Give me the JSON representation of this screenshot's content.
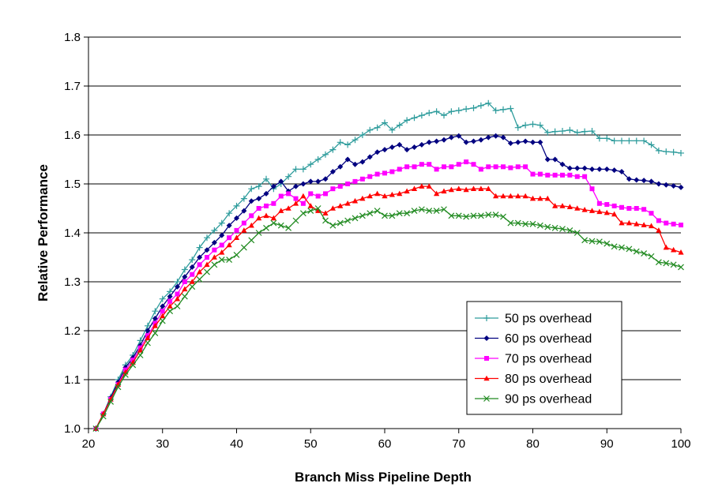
{
  "chart_data": {
    "type": "line",
    "title": "",
    "xlabel": "Branch Miss Pipeline Depth",
    "ylabel": "Relative Performance",
    "xlim": [
      20,
      100
    ],
    "ylim": [
      1.0,
      1.8
    ],
    "x_ticks": [
      "20",
      "30",
      "40",
      "50",
      "60",
      "70",
      "80",
      "90",
      "100"
    ],
    "y_ticks": [
      "1.0",
      "1.1",
      "1.2",
      "1.3",
      "1.4",
      "1.5",
      "1.6",
      "1.7",
      "1.8"
    ],
    "grid": "horizontal",
    "legend_position": "bottom-right",
    "x": [
      21,
      22,
      23,
      24,
      25,
      26,
      27,
      28,
      29,
      30,
      31,
      32,
      33,
      34,
      35,
      36,
      37,
      38,
      39,
      40,
      41,
      42,
      43,
      44,
      45,
      46,
      47,
      48,
      49,
      50,
      51,
      52,
      53,
      54,
      55,
      56,
      57,
      58,
      59,
      60,
      61,
      62,
      63,
      64,
      65,
      66,
      67,
      68,
      69,
      70,
      71,
      72,
      73,
      74,
      75,
      76,
      77,
      78,
      79,
      80,
      81,
      82,
      83,
      84,
      85,
      86,
      87,
      88,
      89,
      90,
      91,
      92,
      93,
      94,
      95,
      96,
      97,
      98,
      99,
      100
    ],
    "series": [
      {
        "name": "50 ps overhead",
        "color": "#2E9C9C",
        "marker": "plus",
        "values": [
          1.0,
          1.03,
          1.065,
          1.1,
          1.13,
          1.15,
          1.18,
          1.21,
          1.24,
          1.265,
          1.28,
          1.3,
          1.325,
          1.345,
          1.37,
          1.39,
          1.405,
          1.42,
          1.44,
          1.455,
          1.47,
          1.49,
          1.495,
          1.51,
          1.49,
          1.5,
          1.515,
          1.53,
          1.53,
          1.54,
          1.55,
          1.56,
          1.57,
          1.585,
          1.58,
          1.59,
          1.6,
          1.61,
          1.615,
          1.625,
          1.61,
          1.62,
          1.63,
          1.635,
          1.64,
          1.645,
          1.648,
          1.64,
          1.648,
          1.65,
          1.653,
          1.655,
          1.66,
          1.665,
          1.65,
          1.652,
          1.654,
          1.615,
          1.62,
          1.622,
          1.62,
          1.605,
          1.607,
          1.608,
          1.61,
          1.605,
          1.607,
          1.608,
          1.593,
          1.593,
          1.588,
          1.588,
          1.588,
          1.588,
          1.588,
          1.58,
          1.568,
          1.566,
          1.565,
          1.563
        ]
      },
      {
        "name": "60 ps overhead",
        "color": "#000080",
        "marker": "diamond",
        "values": [
          1.0,
          1.03,
          1.063,
          1.095,
          1.125,
          1.145,
          1.17,
          1.2,
          1.225,
          1.25,
          1.27,
          1.29,
          1.31,
          1.33,
          1.35,
          1.365,
          1.38,
          1.395,
          1.415,
          1.43,
          1.445,
          1.465,
          1.47,
          1.48,
          1.495,
          1.505,
          1.485,
          1.495,
          1.5,
          1.505,
          1.505,
          1.51,
          1.525,
          1.535,
          1.55,
          1.54,
          1.545,
          1.555,
          1.565,
          1.57,
          1.575,
          1.58,
          1.57,
          1.575,
          1.58,
          1.585,
          1.587,
          1.59,
          1.595,
          1.598,
          1.585,
          1.587,
          1.59,
          1.595,
          1.598,
          1.595,
          1.583,
          1.585,
          1.587,
          1.585,
          1.585,
          1.55,
          1.55,
          1.54,
          1.532,
          1.532,
          1.532,
          1.53,
          1.53,
          1.53,
          1.528,
          1.525,
          1.51,
          1.508,
          1.507,
          1.505,
          1.5,
          1.498,
          1.496,
          1.493
        ]
      },
      {
        "name": "70 ps overhead",
        "color": "#FF00FF",
        "marker": "square",
        "values": [
          1.0,
          1.03,
          1.06,
          1.09,
          1.12,
          1.14,
          1.165,
          1.19,
          1.215,
          1.24,
          1.26,
          1.275,
          1.3,
          1.315,
          1.335,
          1.35,
          1.365,
          1.375,
          1.39,
          1.405,
          1.42,
          1.435,
          1.45,
          1.455,
          1.46,
          1.475,
          1.48,
          1.47,
          1.46,
          1.48,
          1.475,
          1.48,
          1.49,
          1.495,
          1.5,
          1.505,
          1.51,
          1.515,
          1.52,
          1.522,
          1.525,
          1.53,
          1.535,
          1.535,
          1.54,
          1.54,
          1.53,
          1.535,
          1.535,
          1.54,
          1.545,
          1.54,
          1.53,
          1.535,
          1.535,
          1.535,
          1.533,
          1.535,
          1.535,
          1.52,
          1.52,
          1.518,
          1.518,
          1.518,
          1.518,
          1.515,
          1.515,
          1.49,
          1.46,
          1.458,
          1.455,
          1.452,
          1.45,
          1.45,
          1.448,
          1.44,
          1.425,
          1.42,
          1.418,
          1.416
        ]
      },
      {
        "name": "80 ps overhead",
        "color": "#FF0000",
        "marker": "triangle",
        "values": [
          1.0,
          1.03,
          1.06,
          1.09,
          1.115,
          1.135,
          1.16,
          1.185,
          1.21,
          1.23,
          1.25,
          1.265,
          1.285,
          1.3,
          1.32,
          1.335,
          1.35,
          1.36,
          1.375,
          1.39,
          1.405,
          1.415,
          1.43,
          1.435,
          1.43,
          1.445,
          1.45,
          1.46,
          1.475,
          1.455,
          1.445,
          1.44,
          1.45,
          1.455,
          1.46,
          1.465,
          1.47,
          1.475,
          1.48,
          1.475,
          1.478,
          1.48,
          1.485,
          1.49,
          1.495,
          1.495,
          1.48,
          1.485,
          1.488,
          1.49,
          1.488,
          1.49,
          1.49,
          1.49,
          1.475,
          1.475,
          1.475,
          1.475,
          1.475,
          1.47,
          1.47,
          1.47,
          1.455,
          1.455,
          1.453,
          1.45,
          1.447,
          1.445,
          1.443,
          1.441,
          1.438,
          1.42,
          1.42,
          1.418,
          1.416,
          1.414,
          1.405,
          1.37,
          1.365,
          1.36
        ]
      },
      {
        "name": "90 ps overhead",
        "color": "#228B22",
        "marker": "x",
        "values": [
          1.0,
          1.025,
          1.055,
          1.085,
          1.11,
          1.13,
          1.15,
          1.175,
          1.195,
          1.22,
          1.24,
          1.25,
          1.27,
          1.29,
          1.305,
          1.32,
          1.335,
          1.345,
          1.345,
          1.355,
          1.37,
          1.385,
          1.4,
          1.41,
          1.42,
          1.415,
          1.41,
          1.425,
          1.44,
          1.445,
          1.45,
          1.425,
          1.415,
          1.42,
          1.425,
          1.43,
          1.435,
          1.44,
          1.445,
          1.435,
          1.435,
          1.44,
          1.44,
          1.445,
          1.448,
          1.445,
          1.445,
          1.448,
          1.435,
          1.435,
          1.433,
          1.435,
          1.435,
          1.437,
          1.437,
          1.433,
          1.42,
          1.42,
          1.418,
          1.418,
          1.415,
          1.412,
          1.41,
          1.408,
          1.405,
          1.4,
          1.385,
          1.383,
          1.382,
          1.378,
          1.372,
          1.37,
          1.367,
          1.362,
          1.358,
          1.352,
          1.34,
          1.338,
          1.335,
          1.33
        ]
      }
    ]
  }
}
